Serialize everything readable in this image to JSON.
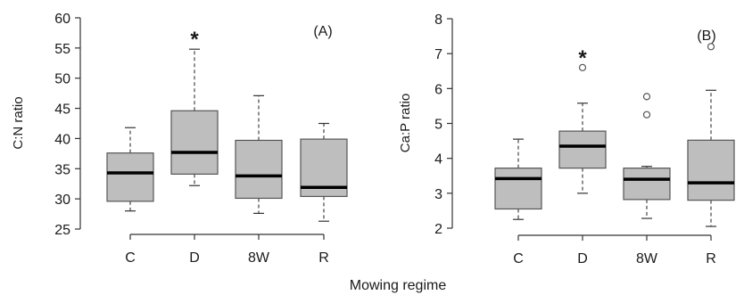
{
  "shared_xlabel": "Mowing regime",
  "chart_data": [
    {
      "type": "boxplot",
      "panel_label": "(A)",
      "xlabel": "",
      "ylabel": "C:N ratio",
      "ylim": [
        25,
        60
      ],
      "yticks": [
        25,
        30,
        35,
        40,
        45,
        50,
        55,
        60
      ],
      "categories": [
        "C",
        "D",
        "8W",
        "R"
      ],
      "boxes": [
        {
          "category": "C",
          "whisker_low": 28.0,
          "q1": 29.6,
          "median": 34.3,
          "q3": 37.6,
          "whisker_high": 41.8,
          "outliers": [],
          "significant": false
        },
        {
          "category": "D",
          "whisker_low": 32.2,
          "q1": 34.1,
          "median": 37.7,
          "q3": 44.6,
          "whisker_high": 54.8,
          "outliers": [],
          "significant": true
        },
        {
          "category": "8W",
          "whisker_low": 27.6,
          "q1": 30.1,
          "median": 33.8,
          "q3": 39.7,
          "whisker_high": 47.1,
          "outliers": [],
          "significant": false
        },
        {
          "category": "R",
          "whisker_low": 26.3,
          "q1": 30.4,
          "median": 31.9,
          "q3": 39.9,
          "whisker_high": 42.5,
          "outliers": [],
          "significant": false
        }
      ],
      "significance_marker": "*"
    },
    {
      "type": "boxplot",
      "panel_label": "(B)",
      "xlabel": "",
      "ylabel": "Ca:P ratio",
      "ylim": [
        2,
        8
      ],
      "yticks": [
        2,
        3,
        4,
        5,
        6,
        7,
        8
      ],
      "categories": [
        "C",
        "D",
        "8W",
        "R"
      ],
      "boxes": [
        {
          "category": "C",
          "whisker_low": 2.25,
          "q1": 2.55,
          "median": 3.42,
          "q3": 3.72,
          "whisker_high": 4.55,
          "outliers": [],
          "significant": false
        },
        {
          "category": "D",
          "whisker_low": 3.0,
          "q1": 3.72,
          "median": 4.35,
          "q3": 4.78,
          "whisker_high": 5.58,
          "outliers": [
            6.6
          ],
          "significant": true
        },
        {
          "category": "8W",
          "whisker_low": 2.28,
          "q1": 2.82,
          "median": 3.4,
          "q3": 3.72,
          "whisker_high": 3.77,
          "outliers": [
            5.25,
            5.77
          ],
          "significant": false
        },
        {
          "category": "R",
          "whisker_low": 2.05,
          "q1": 2.8,
          "median": 3.3,
          "q3": 4.52,
          "whisker_high": 5.95,
          "outliers": [
            7.2
          ],
          "significant": false
        }
      ],
      "significance_marker": "*"
    }
  ]
}
